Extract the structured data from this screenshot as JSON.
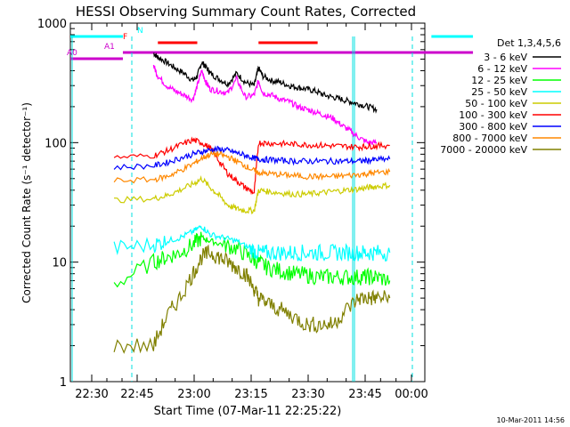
{
  "chart_data": {
    "type": "line",
    "title": "HESSI Observing Summary Count Rates, Corrected",
    "xlabel": "Start Time (07-Mar-11 22:25:22)",
    "ylabel": "Corrected Count Rate (s⁻¹ detector⁻¹)",
    "yscale": "log",
    "ylim": [
      1,
      1000
    ],
    "xlim_minutes": [
      22.0,
      184.0
    ],
    "x_ticks": [
      "22:30",
      "22:45",
      "23:00",
      "23:15",
      "23:30",
      "23:45",
      "00:00"
    ],
    "y_ticks": [
      "1",
      "10",
      "100",
      "1000"
    ],
    "legend_title": "Det 1,3,4,5,6",
    "legend_position": "right",
    "series": [
      {
        "name": "3 - 6 keV",
        "color": "#000000",
        "x": [
          38,
          40,
          44,
          48,
          52,
          56,
          58,
          60,
          62,
          64,
          68,
          72,
          76,
          80,
          84,
          86,
          88,
          92,
          96,
          100,
          104,
          108,
          112,
          116,
          120,
          124,
          128,
          132,
          136,
          140
        ],
        "y": [
          560,
          520,
          470,
          420,
          380,
          330,
          360,
          470,
          430,
          380,
          340,
          310,
          380,
          320,
          300,
          420,
          360,
          330,
          320,
          300,
          290,
          280,
          270,
          250,
          240,
          230,
          220,
          210,
          200,
          190
        ]
      },
      {
        "name": "6 - 12 keV",
        "color": "#ff00ff",
        "x": [
          38,
          40,
          44,
          48,
          52,
          56,
          58,
          60,
          62,
          64,
          68,
          72,
          76,
          80,
          84,
          86,
          88,
          92,
          96,
          100,
          104,
          108,
          112,
          116,
          120,
          124,
          128,
          132,
          136,
          140
        ],
        "y": [
          440,
          360,
          300,
          270,
          250,
          230,
          300,
          400,
          320,
          280,
          270,
          260,
          340,
          240,
          250,
          330,
          260,
          250,
          230,
          220,
          200,
          190,
          180,
          170,
          160,
          140,
          125,
          110,
          100,
          100
        ]
      },
      {
        "name": "12 - 25 keV",
        "color": "#00ff00",
        "x": [
          20,
          38,
          44,
          50,
          56,
          60,
          64,
          70,
          76,
          82,
          86,
          90,
          96,
          102,
          108,
          114,
          120,
          126,
          132,
          136,
          140,
          146
        ],
        "y": [
          6.5,
          10,
          11,
          12,
          14,
          16,
          15,
          14,
          13,
          11,
          10,
          9,
          8.5,
          8,
          7.8,
          7.5,
          7.5,
          7.5,
          7.5,
          7.5,
          7.5,
          7
        ]
      },
      {
        "name": "25 - 50 keV",
        "color": "#00ffff",
        "x": [
          20,
          38,
          44,
          50,
          56,
          60,
          64,
          70,
          76,
          82,
          86,
          90,
          96,
          102,
          108,
          114,
          120,
          126,
          132,
          136,
          140,
          146
        ],
        "y": [
          13,
          14,
          15,
          16,
          18,
          20,
          17,
          16,
          15,
          13,
          12,
          12,
          12,
          12,
          12,
          12,
          12,
          12,
          12,
          12,
          12,
          12
        ]
      },
      {
        "name": "50 - 100 keV",
        "color": "#cccc00",
        "x": [
          20,
          38,
          44,
          50,
          56,
          60,
          64,
          68,
          72,
          76,
          80,
          84,
          86,
          90,
          96,
          102,
          108,
          114,
          120,
          126,
          132,
          136,
          140,
          146
        ],
        "y": [
          33,
          34,
          36,
          40,
          45,
          50,
          42,
          36,
          30,
          28,
          27,
          27,
          40,
          39,
          38,
          37,
          37,
          38,
          39,
          40,
          41,
          42,
          43,
          44
        ]
      },
      {
        "name": "100 - 300 keV",
        "color": "#ff0000",
        "x": [
          20,
          38,
          44,
          50,
          56,
          60,
          64,
          68,
          72,
          76,
          80,
          84,
          86,
          90,
          96,
          102,
          108,
          114,
          120,
          126,
          132,
          136,
          140,
          146
        ],
        "y": [
          75,
          78,
          85,
          95,
          105,
          100,
          90,
          70,
          55,
          48,
          42,
          38,
          100,
          99,
          98,
          97,
          96,
          95,
          94,
          93,
          92,
          93,
          94,
          95
        ]
      },
      {
        "name": "300 - 800 keV",
        "color": "#0000ff",
        "x": [
          20,
          38,
          44,
          50,
          56,
          60,
          64,
          68,
          72,
          76,
          80,
          84,
          86,
          90,
          96,
          102,
          108,
          114,
          120,
          126,
          132,
          136,
          140,
          146
        ],
        "y": [
          62,
          64,
          68,
          74,
          80,
          84,
          87,
          88,
          86,
          82,
          78,
          74,
          73,
          72,
          71,
          70,
          70,
          70,
          70,
          70,
          70,
          71,
          72,
          73
        ]
      },
      {
        "name": "800 - 7000 keV",
        "color": "#ff8800",
        "x": [
          20,
          38,
          44,
          50,
          56,
          60,
          64,
          68,
          72,
          76,
          80,
          84,
          86,
          90,
          96,
          102,
          108,
          114,
          120,
          126,
          132,
          136,
          140,
          146
        ],
        "y": [
          48,
          49,
          52,
          58,
          66,
          74,
          80,
          80,
          76,
          70,
          64,
          58,
          56,
          55,
          54,
          53,
          52,
          52,
          52,
          53,
          54,
          55,
          56,
          57
        ]
      },
      {
        "name": "7000 - 20000 keV",
        "color": "#808000",
        "x": [
          20,
          38,
          44,
          50,
          56,
          60,
          64,
          68,
          72,
          76,
          80,
          84,
          86,
          90,
          96,
          102,
          108,
          114,
          120,
          126,
          132,
          136,
          140,
          146
        ],
        "y": [
          2,
          2,
          3.5,
          5,
          8,
          11,
          12,
          11,
          10,
          9,
          8,
          6,
          5,
          4.5,
          4,
          3.5,
          3,
          3,
          3,
          4,
          5,
          5,
          5,
          5
        ]
      }
    ],
    "state_bars": [
      {
        "label": "F",
        "color": "#ff0000",
        "segments": [
          [
            40,
            58
          ],
          [
            86,
            113
          ]
        ]
      },
      {
        "label": "N",
        "color": "#00ffff",
        "segments": [
          [
            0,
            24
          ],
          [
            165,
            184
          ]
        ]
      },
      {
        "label": "A0",
        "color": "#cc00cc",
        "segments": [
          [
            0,
            24
          ]
        ]
      },
      {
        "label": "A1",
        "color": "#cc00cc",
        "segments": [
          [
            24,
            184
          ]
        ]
      }
    ]
  },
  "timestamp": "10-Mar-2011 14:56"
}
